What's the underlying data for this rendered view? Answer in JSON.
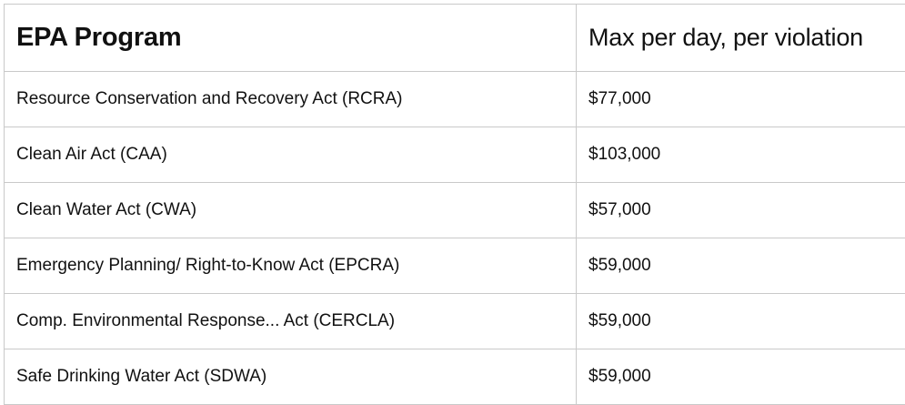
{
  "table": {
    "headers": [
      "EPA Program",
      "Max per day, per violation"
    ],
    "rows": [
      {
        "program": "Resource Conservation and Recovery Act (RCRA)",
        "max": "$77,000"
      },
      {
        "program": "Clean Air Act (CAA)",
        "max": "$103,000"
      },
      {
        "program": "Clean Water Act (CWA)",
        "max": "$57,000"
      },
      {
        "program": "Emergency Planning/ Right-to-Know Act (EPCRA)",
        "max": "$59,000"
      },
      {
        "program": "Comp. Environmental Response... Act (CERCLA)",
        "max": "$59,000"
      },
      {
        "program": "Safe Drinking Water Act (SDWA)",
        "max": "$59,000"
      }
    ]
  }
}
